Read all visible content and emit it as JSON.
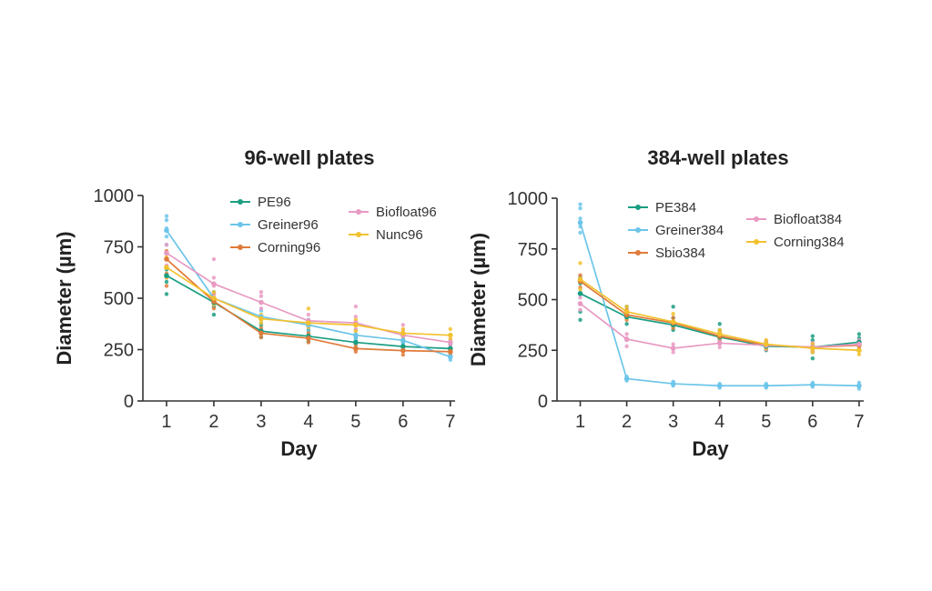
{
  "chart_data": [
    {
      "type": "line",
      "title": "96-well plates",
      "xlabel": "Day",
      "ylabel": "Diameter (µm)",
      "x": [
        1,
        2,
        3,
        4,
        5,
        6,
        7
      ],
      "xlim": [
        0.5,
        7.1
      ],
      "ylim": [
        0,
        1000
      ],
      "yticks": [
        0,
        250,
        500,
        750,
        1000
      ],
      "xticks": [
        1,
        2,
        3,
        4,
        5,
        6,
        7
      ],
      "grid": false,
      "legend_position": "top-right",
      "series": [
        {
          "name": "PE96",
          "color": "#1a9e82",
          "values": [
            610,
            480,
            340,
            315,
            285,
            265,
            255
          ],
          "points": [
            [
              1,
              520
            ],
            [
              1,
              580
            ],
            [
              1,
              640
            ],
            [
              1,
              690
            ],
            [
              2,
              420
            ],
            [
              2,
              460
            ],
            [
              2,
              500
            ],
            [
              2,
              530
            ],
            [
              3,
              310
            ],
            [
              3,
              340
            ],
            [
              3,
              370
            ],
            [
              4,
              290
            ],
            [
              4,
              320
            ],
            [
              4,
              345
            ],
            [
              5,
              260
            ],
            [
              5,
              290
            ],
            [
              5,
              310
            ],
            [
              6,
              245
            ],
            [
              6,
              270
            ],
            [
              6,
              285
            ],
            [
              7,
              235
            ],
            [
              7,
              260
            ],
            [
              7,
              275
            ]
          ]
        },
        {
          "name": "Greiner96",
          "color": "#6cc5ea",
          "values": [
            830,
            500,
            410,
            370,
            320,
            295,
            215
          ],
          "points": [
            [
              1,
              760
            ],
            [
              1,
              800
            ],
            [
              1,
              840
            ],
            [
              1,
              880
            ],
            [
              1,
              900
            ],
            [
              2,
              470
            ],
            [
              2,
              500
            ],
            [
              2,
              530
            ],
            [
              3,
              380
            ],
            [
              3,
              410
            ],
            [
              3,
              440
            ],
            [
              4,
              340
            ],
            [
              4,
              370
            ],
            [
              4,
              395
            ],
            [
              5,
              300
            ],
            [
              5,
              325
            ],
            [
              5,
              345
            ],
            [
              6,
              275
            ],
            [
              6,
              300
            ],
            [
              6,
              315
            ],
            [
              7,
              200
            ],
            [
              7,
              215
            ],
            [
              7,
              230
            ]
          ]
        },
        {
          "name": "Corning96",
          "color": "#e07b3a",
          "values": [
            690,
            485,
            330,
            305,
            255,
            245,
            240
          ],
          "points": [
            [
              1,
              560
            ],
            [
              1,
              620
            ],
            [
              1,
              690
            ],
            [
              1,
              730
            ],
            [
              2,
              450
            ],
            [
              2,
              490
            ],
            [
              2,
              520
            ],
            [
              3,
              310
            ],
            [
              3,
              330
            ],
            [
              3,
              355
            ],
            [
              4,
              285
            ],
            [
              4,
              305
            ],
            [
              4,
              330
            ],
            [
              5,
              240
            ],
            [
              5,
              255
            ],
            [
              5,
              275
            ],
            [
              6,
              225
            ],
            [
              6,
              245
            ],
            [
              6,
              260
            ],
            [
              7,
              225
            ],
            [
              7,
              240
            ],
            [
              7,
              255
            ]
          ]
        },
        {
          "name": "Biofloat96",
          "color": "#e89ac3",
          "values": [
            720,
            570,
            480,
            390,
            380,
            320,
            285
          ],
          "points": [
            [
              1,
              600
            ],
            [
              1,
              660
            ],
            [
              1,
              720
            ],
            [
              1,
              760
            ],
            [
              2,
              520
            ],
            [
              2,
              560
            ],
            [
              2,
              600
            ],
            [
              2,
              690
            ],
            [
              3,
              450
            ],
            [
              3,
              480
            ],
            [
              3,
              510
            ],
            [
              3,
              530
            ],
            [
              4,
              360
            ],
            [
              4,
              390
            ],
            [
              4,
              420
            ],
            [
              5,
              350
            ],
            [
              5,
              380
            ],
            [
              5,
              410
            ],
            [
              5,
              460
            ],
            [
              6,
              300
            ],
            [
              6,
              320
            ],
            [
              6,
              345
            ],
            [
              6,
              370
            ],
            [
              7,
              270
            ],
            [
              7,
              285
            ],
            [
              7,
              300
            ]
          ]
        },
        {
          "name": "Nunc96",
          "color": "#f2c12e",
          "values": [
            650,
            500,
            400,
            380,
            370,
            330,
            320
          ],
          "points": [
            [
              1,
              600
            ],
            [
              1,
              650
            ],
            [
              1,
              700
            ],
            [
              2,
              470
            ],
            [
              2,
              500
            ],
            [
              2,
              530
            ],
            [
              3,
              380
            ],
            [
              3,
              400
            ],
            [
              3,
              420
            ],
            [
              4,
              360
            ],
            [
              4,
              380
            ],
            [
              4,
              450
            ],
            [
              5,
              340
            ],
            [
              5,
              370
            ],
            [
              5,
              395
            ],
            [
              6,
              310
            ],
            [
              6,
              330
            ],
            [
              6,
              350
            ],
            [
              7,
              300
            ],
            [
              7,
              320
            ],
            [
              7,
              350
            ]
          ]
        }
      ]
    },
    {
      "type": "line",
      "title": "384-well plates",
      "xlabel": "Day",
      "ylabel": "Diameter (µm)",
      "x": [
        1,
        2,
        3,
        4,
        5,
        6,
        7
      ],
      "xlim": [
        0.5,
        7.1
      ],
      "ylim": [
        0,
        1000
      ],
      "yticks": [
        0,
        250,
        500,
        750,
        1000
      ],
      "xticks": [
        1,
        2,
        3,
        4,
        5,
        6,
        7
      ],
      "grid": false,
      "legend_position": "top-right",
      "series": [
        {
          "name": "PE384",
          "color": "#1a9e82",
          "values": [
            530,
            415,
            375,
            315,
            270,
            265,
            290
          ],
          "points": [
            [
              1,
              400
            ],
            [
              1,
              440
            ],
            [
              1,
              530
            ],
            [
              1,
              580
            ],
            [
              1,
              610
            ],
            [
              2,
              380
            ],
            [
              2,
              410
            ],
            [
              2,
              440
            ],
            [
              2,
              465
            ],
            [
              3,
              350
            ],
            [
              3,
              380
            ],
            [
              3,
              410
            ],
            [
              3,
              465
            ],
            [
              4,
              290
            ],
            [
              4,
              320
            ],
            [
              4,
              350
            ],
            [
              4,
              380
            ],
            [
              5,
              250
            ],
            [
              5,
              270
            ],
            [
              5,
              290
            ],
            [
              6,
              210
            ],
            [
              6,
              240
            ],
            [
              6,
              270
            ],
            [
              6,
              300
            ],
            [
              6,
              320
            ],
            [
              7,
              260
            ],
            [
              7,
              290
            ],
            [
              7,
              310
            ],
            [
              7,
              330
            ]
          ]
        },
        {
          "name": "Greiner384",
          "color": "#6cc5ea",
          "values": [
            880,
            110,
            85,
            75,
            75,
            80,
            75
          ],
          "points": [
            [
              1,
              830
            ],
            [
              1,
              860
            ],
            [
              1,
              900
            ],
            [
              1,
              950
            ],
            [
              1,
              970
            ],
            [
              2,
              100
            ],
            [
              2,
              110
            ],
            [
              2,
              120
            ],
            [
              3,
              75
            ],
            [
              3,
              85
            ],
            [
              3,
              95
            ],
            [
              4,
              65
            ],
            [
              4,
              75
            ],
            [
              4,
              85
            ],
            [
              5,
              65
            ],
            [
              5,
              75
            ],
            [
              5,
              85
            ],
            [
              6,
              70
            ],
            [
              6,
              80
            ],
            [
              6,
              90
            ],
            [
              7,
              60
            ],
            [
              7,
              75
            ],
            [
              7,
              90
            ]
          ]
        },
        {
          "name": "Sbio384",
          "color": "#e07b3a",
          "values": [
            590,
            425,
            385,
            320,
            275,
            265,
            275
          ],
          "points": [
            [
              1,
              560
            ],
            [
              1,
              590
            ],
            [
              1,
              620
            ],
            [
              2,
              400
            ],
            [
              2,
              425
            ],
            [
              2,
              450
            ],
            [
              3,
              360
            ],
            [
              3,
              385
            ],
            [
              3,
              410
            ],
            [
              4,
              300
            ],
            [
              4,
              320
            ],
            [
              4,
              340
            ],
            [
              5,
              255
            ],
            [
              5,
              275
            ],
            [
              5,
              295
            ],
            [
              6,
              245
            ],
            [
              6,
              265
            ],
            [
              6,
              285
            ],
            [
              7,
              255
            ],
            [
              7,
              275
            ],
            [
              7,
              295
            ]
          ]
        },
        {
          "name": "Biofloat384",
          "color": "#e89ac3",
          "values": [
            480,
            305,
            260,
            285,
            275,
            265,
            280
          ],
          "points": [
            [
              1,
              450
            ],
            [
              1,
              480
            ],
            [
              1,
              510
            ],
            [
              2,
              270
            ],
            [
              2,
              300
            ],
            [
              2,
              330
            ],
            [
              3,
              240
            ],
            [
              3,
              260
            ],
            [
              3,
              280
            ],
            [
              4,
              265
            ],
            [
              4,
              285
            ],
            [
              4,
              305
            ],
            [
              5,
              255
            ],
            [
              5,
              275
            ],
            [
              5,
              295
            ],
            [
              6,
              245
            ],
            [
              6,
              265
            ],
            [
              6,
              285
            ],
            [
              7,
              260
            ],
            [
              7,
              280
            ],
            [
              7,
              300
            ]
          ]
        },
        {
          "name": "Corning384",
          "color": "#f2c12e",
          "values": [
            600,
            440,
            390,
            330,
            280,
            260,
            250
          ],
          "points": [
            [
              1,
              550
            ],
            [
              1,
              600
            ],
            [
              1,
              680
            ],
            [
              2,
              410
            ],
            [
              2,
              440
            ],
            [
              2,
              465
            ],
            [
              3,
              370
            ],
            [
              3,
              390
            ],
            [
              3,
              430
            ],
            [
              4,
              310
            ],
            [
              4,
              330
            ],
            [
              4,
              350
            ],
            [
              5,
              260
            ],
            [
              5,
              280
            ],
            [
              5,
              300
            ],
            [
              6,
              240
            ],
            [
              6,
              260
            ],
            [
              6,
              280
            ],
            [
              7,
              230
            ],
            [
              7,
              250
            ],
            [
              7,
              270
            ]
          ]
        }
      ]
    }
  ]
}
